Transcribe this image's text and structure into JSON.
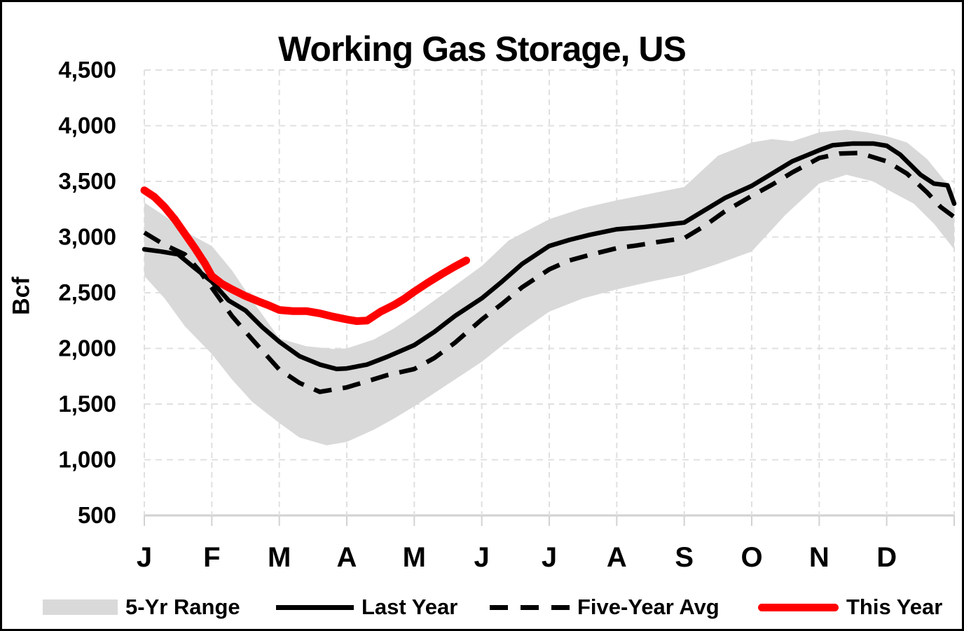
{
  "title": "Working Gas Storage, US",
  "y_axis": {
    "label": "Bcf",
    "ticks": [
      {
        "label": "4,500",
        "value": 4500
      },
      {
        "label": "4,000",
        "value": 4000
      },
      {
        "label": "3,500",
        "value": 3500
      },
      {
        "label": "3,000",
        "value": 3000
      },
      {
        "label": "2,500",
        "value": 2500
      },
      {
        "label": "2,000",
        "value": 2000
      },
      {
        "label": "1,500",
        "value": 1500
      },
      {
        "label": "1,000",
        "value": 1000
      },
      {
        "label": "500",
        "value": 500
      }
    ]
  },
  "x_axis": {
    "labels": [
      "J",
      "F",
      "M",
      "A",
      "M",
      "J",
      "J",
      "A",
      "S",
      "O",
      "N",
      "D"
    ]
  },
  "legend": [
    {
      "label": "5-Yr Range"
    },
    {
      "label": "Last Year"
    },
    {
      "label": "Five-Year Avg"
    },
    {
      "label": "This Year"
    }
  ],
  "colors": {
    "this_year": "#ff0000",
    "last_year": "#000000",
    "five_year_avg": "#000000",
    "range_band": "#d9d9d9",
    "gridline": "#e0e0e0",
    "axis_line": "#d2d2d2"
  },
  "chart_data": {
    "type": "line",
    "title": "Working Gas Storage, US",
    "ylabel": "Bcf",
    "ylim": [
      500,
      4500
    ],
    "grid": true,
    "legend_position": "bottom",
    "x_unit": "month index (0 = Jan 1, 12 = year end)",
    "categories": [
      "J",
      "F",
      "M",
      "A",
      "M",
      "J",
      "J",
      "A",
      "S",
      "O",
      "N",
      "D"
    ],
    "band": {
      "name": "5-Yr Range",
      "color": "#d9d9d9",
      "top": [
        [
          0,
          3310
        ],
        [
          0.3,
          3190
        ],
        [
          0.6,
          3050
        ],
        [
          1,
          2920
        ],
        [
          1.3,
          2700
        ],
        [
          1.6,
          2430
        ],
        [
          2,
          2090
        ],
        [
          2.4,
          2020
        ],
        [
          2.8,
          1995
        ],
        [
          3,
          2000
        ],
        [
          3.4,
          2080
        ],
        [
          3.7,
          2180
        ],
        [
          4,
          2300
        ],
        [
          4.5,
          2520
        ],
        [
          5,
          2740
        ],
        [
          5.4,
          2970
        ],
        [
          6,
          3160
        ],
        [
          6.5,
          3260
        ],
        [
          7,
          3330
        ],
        [
          7.5,
          3390
        ],
        [
          8,
          3450
        ],
        [
          8.5,
          3730
        ],
        [
          9,
          3850
        ],
        [
          9.3,
          3880
        ],
        [
          9.6,
          3860
        ],
        [
          10,
          3940
        ],
        [
          10.4,
          3965
        ],
        [
          10.7,
          3940
        ],
        [
          11,
          3906
        ],
        [
          11.3,
          3850
        ],
        [
          11.6,
          3700
        ],
        [
          11.8,
          3550
        ],
        [
          12,
          3400
        ]
      ],
      "bottom": [
        [
          0,
          2650
        ],
        [
          0.3,
          2450
        ],
        [
          0.6,
          2200
        ],
        [
          1,
          1950
        ],
        [
          1.3,
          1720
        ],
        [
          1.6,
          1520
        ],
        [
          2,
          1330
        ],
        [
          2.3,
          1200
        ],
        [
          2.7,
          1130
        ],
        [
          3,
          1160
        ],
        [
          3.4,
          1270
        ],
        [
          3.7,
          1370
        ],
        [
          4,
          1480
        ],
        [
          4.5,
          1680
        ],
        [
          5,
          1880
        ],
        [
          5.5,
          2120
        ],
        [
          6,
          2330
        ],
        [
          6.5,
          2450
        ],
        [
          7,
          2530
        ],
        [
          7.5,
          2600
        ],
        [
          8,
          2660
        ],
        [
          8.5,
          2760
        ],
        [
          9,
          2870
        ],
        [
          9.5,
          3200
        ],
        [
          10,
          3480
        ],
        [
          10.4,
          3560
        ],
        [
          10.8,
          3500
        ],
        [
          11,
          3430
        ],
        [
          11.4,
          3300
        ],
        [
          11.7,
          3120
        ],
        [
          12,
          2890
        ]
      ]
    },
    "series": [
      {
        "name": "Last Year",
        "style": "solid",
        "color": "#000000",
        "width": 6.5,
        "points": [
          [
            0,
            2890
          ],
          [
            0.25,
            2870
          ],
          [
            0.5,
            2845
          ],
          [
            0.75,
            2720
          ],
          [
            1,
            2600
          ],
          [
            1.25,
            2430
          ],
          [
            1.5,
            2340
          ],
          [
            1.75,
            2190
          ],
          [
            2,
            2060
          ],
          [
            2.3,
            1930
          ],
          [
            2.6,
            1855
          ],
          [
            2.85,
            1815
          ],
          [
            3,
            1820
          ],
          [
            3.3,
            1855
          ],
          [
            3.6,
            1925
          ],
          [
            4,
            2030
          ],
          [
            4.3,
            2150
          ],
          [
            4.6,
            2290
          ],
          [
            5,
            2450
          ],
          [
            5.3,
            2600
          ],
          [
            5.6,
            2760
          ],
          [
            6,
            2920
          ],
          [
            6.3,
            2975
          ],
          [
            6.6,
            3020
          ],
          [
            7,
            3070
          ],
          [
            7.4,
            3090
          ],
          [
            7.7,
            3110
          ],
          [
            8,
            3130
          ],
          [
            8.3,
            3240
          ],
          [
            8.6,
            3350
          ],
          [
            9,
            3460
          ],
          [
            9.3,
            3570
          ],
          [
            9.6,
            3680
          ],
          [
            10,
            3780
          ],
          [
            10.2,
            3825
          ],
          [
            10.5,
            3840
          ],
          [
            10.8,
            3840
          ],
          [
            11,
            3820
          ],
          [
            11.2,
            3740
          ],
          [
            11.5,
            3560
          ],
          [
            11.7,
            3480
          ],
          [
            11.9,
            3465
          ],
          [
            12,
            3300
          ]
        ]
      },
      {
        "name": "Five-Year Avg",
        "style": "dashed",
        "color": "#000000",
        "width": 6.5,
        "points": [
          [
            0,
            3040
          ],
          [
            0.3,
            2930
          ],
          [
            0.6,
            2845
          ],
          [
            0.8,
            2710
          ],
          [
            1,
            2545
          ],
          [
            1.3,
            2290
          ],
          [
            1.6,
            2080
          ],
          [
            2,
            1810
          ],
          [
            2.3,
            1690
          ],
          [
            2.6,
            1610
          ],
          [
            3,
            1650
          ],
          [
            3.3,
            1705
          ],
          [
            3.6,
            1760
          ],
          [
            4,
            1815
          ],
          [
            4.3,
            1915
          ],
          [
            4.6,
            2050
          ],
          [
            5,
            2260
          ],
          [
            5.3,
            2400
          ],
          [
            5.6,
            2550
          ],
          [
            6,
            2710
          ],
          [
            6.3,
            2790
          ],
          [
            6.6,
            2840
          ],
          [
            7,
            2900
          ],
          [
            7.3,
            2925
          ],
          [
            7.6,
            2955
          ],
          [
            8,
            2990
          ],
          [
            8.3,
            3100
          ],
          [
            8.6,
            3230
          ],
          [
            9,
            3370
          ],
          [
            9.3,
            3470
          ],
          [
            9.6,
            3580
          ],
          [
            10,
            3710
          ],
          [
            10.3,
            3750
          ],
          [
            10.6,
            3755
          ],
          [
            11,
            3680
          ],
          [
            11.3,
            3570
          ],
          [
            11.6,
            3400
          ],
          [
            11.8,
            3270
          ],
          [
            12,
            3180
          ]
        ]
      },
      {
        "name": "This Year",
        "style": "solid",
        "color": "#ff0000",
        "width": 11,
        "points": [
          [
            0,
            3420
          ],
          [
            0.15,
            3360
          ],
          [
            0.3,
            3270
          ],
          [
            0.45,
            3160
          ],
          [
            0.6,
            3030
          ],
          [
            0.75,
            2900
          ],
          [
            0.9,
            2760
          ],
          [
            1,
            2650
          ],
          [
            1.15,
            2580
          ],
          [
            1.3,
            2530
          ],
          [
            1.5,
            2470
          ],
          [
            1.7,
            2420
          ],
          [
            1.85,
            2385
          ],
          [
            2,
            2345
          ],
          [
            2.2,
            2335
          ],
          [
            2.4,
            2335
          ],
          [
            2.6,
            2315
          ],
          [
            2.8,
            2285
          ],
          [
            3,
            2260
          ],
          [
            3.15,
            2245
          ],
          [
            3.3,
            2250
          ],
          [
            3.5,
            2330
          ],
          [
            3.7,
            2390
          ],
          [
            3.85,
            2445
          ],
          [
            4,
            2510
          ],
          [
            4.2,
            2590
          ],
          [
            4.4,
            2665
          ],
          [
            4.6,
            2735
          ],
          [
            4.77,
            2790
          ]
        ]
      }
    ]
  }
}
